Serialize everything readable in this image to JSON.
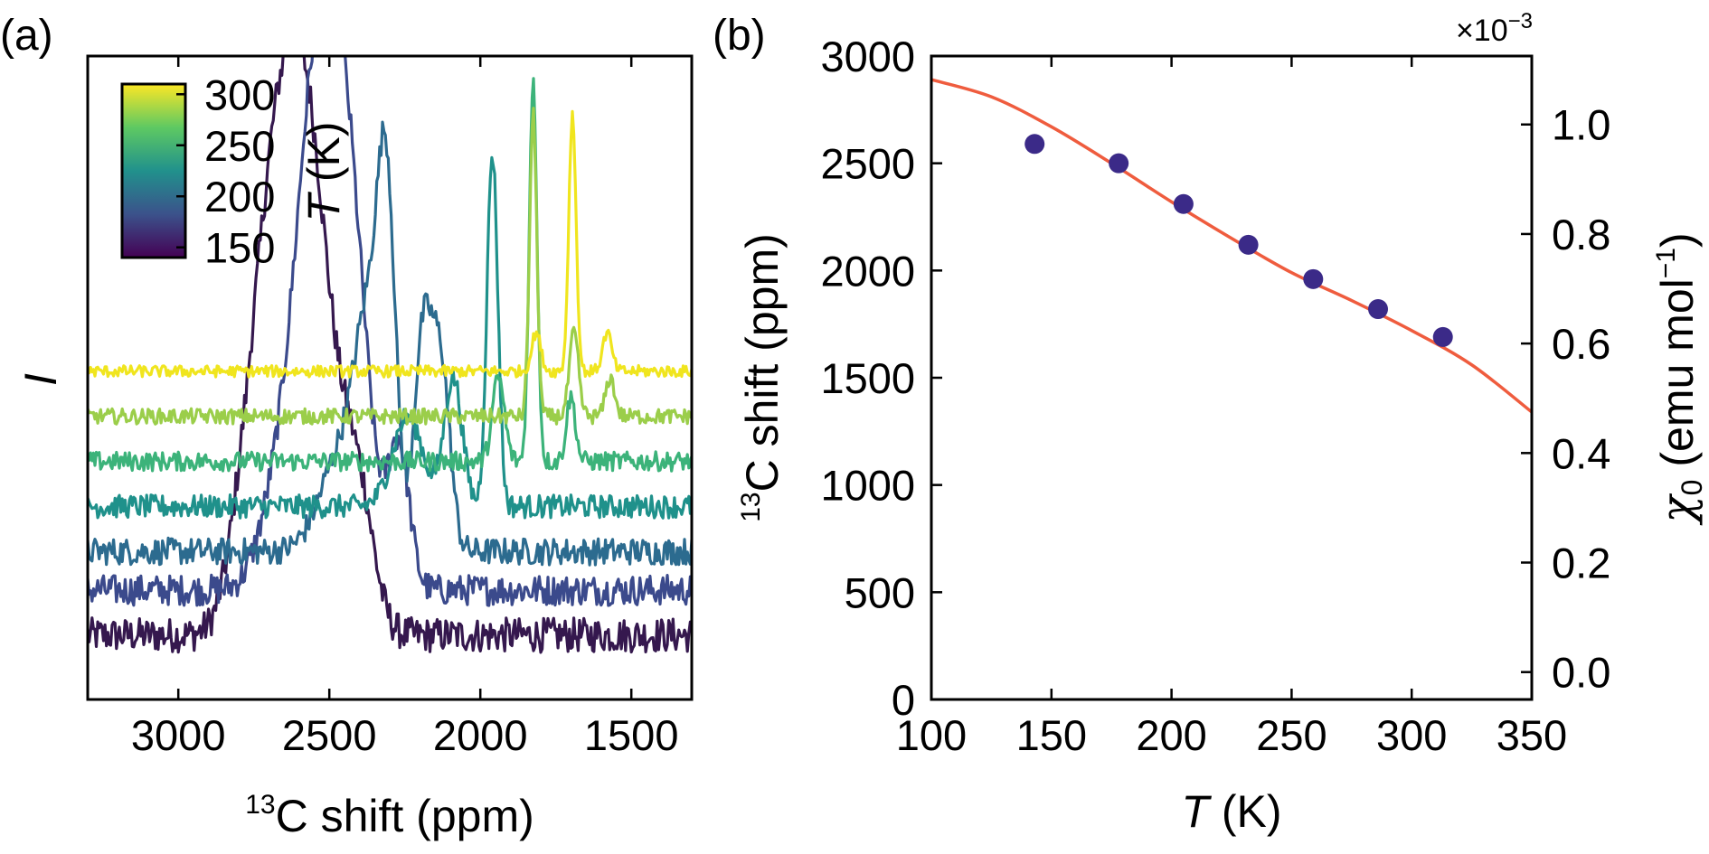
{
  "colors": {
    "background": "#ffffff",
    "fit_line": "#ef5c3e",
    "data_points": "#3b2a88",
    "axes": "#000000"
  },
  "chart_data": [
    {
      "panel_label": "(a)",
      "type": "line",
      "xlabel_sup": "13",
      "xlabel_main": "C shift (ppm)",
      "ylabel": "I",
      "xlim": [
        3300,
        1300
      ],
      "x_reversed": true,
      "xticks": [
        3000,
        2500,
        2000,
        1500
      ],
      "yticks_shown": false,
      "colorbar": {
        "label_italic": "T",
        "label_rest": " (K)",
        "range": [
          140,
          310
        ],
        "ticks": [
          300,
          250,
          200,
          150
        ],
        "colormap": "viridis"
      },
      "series": [
        {
          "temperature_K": 143,
          "color": "#35184e",
          "offset": 0.1,
          "peaks": [
            {
              "x": 2600,
              "h": 0.55,
              "w": 60
            },
            {
              "x": 2680,
              "h": 0.45,
              "w": 55
            },
            {
              "x": 2520,
              "h": 0.4,
              "w": 70
            },
            {
              "x": 2760,
              "h": 0.28,
              "w": 60
            },
            {
              "x": 2400,
              "h": 0.18,
              "w": 50
            }
          ]
        },
        {
          "temperature_K": 178,
          "color": "#3b4a8c",
          "offset": 0.17,
          "peaks": [
            {
              "x": 2490,
              "h": 0.53,
              "w": 60
            },
            {
              "x": 2560,
              "h": 0.42,
              "w": 55
            },
            {
              "x": 2420,
              "h": 0.38,
              "w": 60
            },
            {
              "x": 2640,
              "h": 0.22,
              "w": 70
            },
            {
              "x": 2270,
              "h": 0.22,
              "w": 35
            }
          ]
        },
        {
          "temperature_K": 205,
          "color": "#2c6b8f",
          "offset": 0.23,
          "peaks": [
            {
              "x": 2310,
              "h": 0.5,
              "w": 30
            },
            {
              "x": 2370,
              "h": 0.3,
              "w": 45
            },
            {
              "x": 2190,
              "h": 0.33,
              "w": 30
            },
            {
              "x": 2130,
              "h": 0.28,
              "w": 30
            },
            {
              "x": 2460,
              "h": 0.15,
              "w": 70
            }
          ]
        },
        {
          "temperature_K": 232,
          "color": "#1f918b",
          "offset": 0.3,
          "peaks": [
            {
              "x": 1960,
              "h": 0.55,
              "w": 18
            },
            {
              "x": 2090,
              "h": 0.2,
              "w": 30
            },
            {
              "x": 2240,
              "h": 0.14,
              "w": 50
            }
          ]
        },
        {
          "temperature_K": 259,
          "color": "#3cb37a",
          "offset": 0.37,
          "peaks": [
            {
              "x": 1825,
              "h": 0.59,
              "w": 13
            },
            {
              "x": 1940,
              "h": 0.13,
              "w": 20
            },
            {
              "x": 1700,
              "h": 0.1,
              "w": 15
            }
          ]
        },
        {
          "temperature_K": 286,
          "color": "#9bce4a",
          "offset": 0.44,
          "peaks": [
            {
              "x": 1825,
              "h": 0.47,
              "w": 12
            },
            {
              "x": 1690,
              "h": 0.13,
              "w": 15
            },
            {
              "x": 1570,
              "h": 0.06,
              "w": 15
            }
          ]
        },
        {
          "temperature_K": 313,
          "color": "#f0e51e",
          "offset": 0.51,
          "peaks": [
            {
              "x": 1695,
              "h": 0.4,
              "w": 12
            },
            {
              "x": 1815,
              "h": 0.06,
              "w": 15
            },
            {
              "x": 1580,
              "h": 0.06,
              "w": 15
            }
          ]
        }
      ]
    },
    {
      "panel_label": "(b)",
      "type": "scatter",
      "xlabel_italic": "T",
      "xlabel_rest": " (K)",
      "ylabel_sup": "13",
      "ylabel_main": "C shift (ppm)",
      "y2label": "χ0 (emu mol−1)",
      "y2label_sym": "χ",
      "y2label_sub": "0",
      "y2label_main": " (emu mol",
      "y2label_sup": "−1",
      "y2label_end": ")",
      "y2_multiplier": "×10−3",
      "y2_multiplier_base": "×10",
      "y2_multiplier_exp": "−3",
      "xlim": [
        100,
        350
      ],
      "ylim": [
        0,
        3000
      ],
      "y2lim": [
        -0.05,
        1.125
      ],
      "xticks": [
        100,
        150,
        200,
        250,
        300,
        350
      ],
      "yticks": [
        0,
        500,
        1000,
        1500,
        2000,
        2500,
        3000
      ],
      "y2ticks": [
        "0.0",
        "0.2",
        "0.4",
        "0.6",
        "0.8",
        "1.0"
      ],
      "y2tick_values": [
        0.0,
        0.2,
        0.4,
        0.6,
        0.8,
        1.0
      ],
      "points": {
        "x": [
          143,
          178,
          205,
          232,
          259,
          286,
          313
        ],
        "y": [
          2590,
          2500,
          2310,
          2120,
          1960,
          1820,
          1690
        ]
      },
      "fit": {
        "x": [
          100,
          125,
          150,
          175,
          200,
          225,
          250,
          275,
          300,
          325,
          350
        ],
        "y": [
          2890,
          2810,
          2670,
          2500,
          2320,
          2150,
          1990,
          1860,
          1720,
          1560,
          1340
        ]
      }
    }
  ]
}
